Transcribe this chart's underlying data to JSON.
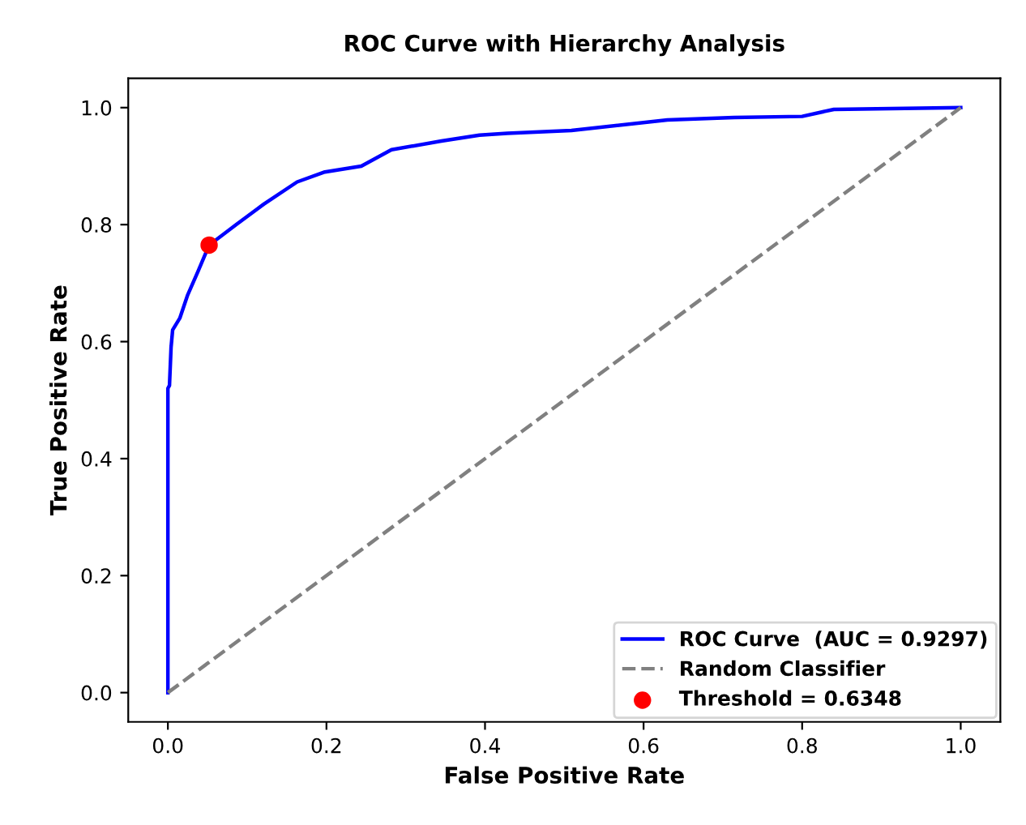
{
  "chart_data": {
    "type": "line",
    "title": "ROC Curve with Hierarchy Analysis",
    "xlabel": "False Positive Rate",
    "ylabel": "True Positive Rate",
    "xlim": [
      -0.05,
      1.05
    ],
    "ylim": [
      -0.05,
      1.05
    ],
    "xticks": [
      {
        "value": 0,
        "label": "0.0"
      },
      0.2,
      0.4,
      0.6,
      0.8,
      {
        "value": 1,
        "label": "1.0"
      }
    ],
    "yticks": [
      {
        "value": 0,
        "label": "0.0"
      },
      0.2,
      0.4,
      0.6,
      0.8,
      {
        "value": 1,
        "label": "1.0"
      }
    ],
    "grid": false,
    "legend": "bottom right",
    "series": [
      {
        "name": "ROC Curve  (AUC = 0.9297)",
        "color": "#0000ff",
        "line_style": "solid",
        "x": [
          0.0,
          0.0,
          0.002,
          0.004,
          0.006,
          0.015,
          0.025,
          0.038,
          0.052,
          0.086,
          0.121,
          0.163,
          0.198,
          0.244,
          0.282,
          0.345,
          0.393,
          0.428,
          0.509,
          0.63,
          0.714,
          0.8,
          0.84,
          1.0
        ],
        "values": [
          0.0,
          0.52,
          0.525,
          0.59,
          0.62,
          0.64,
          0.68,
          0.72,
          0.765,
          0.8,
          0.835,
          0.873,
          0.89,
          0.9,
          0.928,
          0.943,
          0.953,
          0.956,
          0.961,
          0.979,
          0.983,
          0.985,
          0.997,
          1.0
        ]
      },
      {
        "name": "Random Classifier",
        "color": "#808080",
        "line_style": "dashed",
        "x": [
          0.0,
          1.0
        ],
        "values": [
          0.0,
          1.0
        ]
      },
      {
        "name": "Threshold = 0.6348",
        "type": "scatter",
        "color": "#ff0000",
        "marker": "circle",
        "x": [
          0.052
        ],
        "values": [
          0.765
        ]
      }
    ]
  }
}
